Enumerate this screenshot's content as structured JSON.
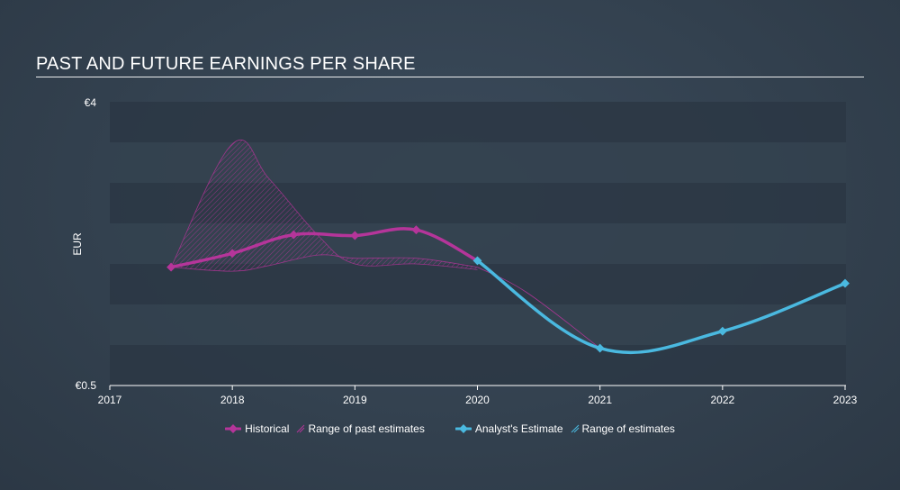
{
  "title": "PAST AND FUTURE EARNINGS PER SHARE",
  "colors": {
    "historical": "#b5359a",
    "estimate": "#4ab9e0",
    "band_dark": "#2b3744",
    "band_light": "#34424f"
  },
  "chart_data": {
    "type": "line",
    "title": "PAST AND FUTURE EARNINGS PER SHARE",
    "ylabel": "EUR",
    "ylim": [
      0.5,
      4
    ],
    "y_tick_labels": [
      "€4",
      "€0.5"
    ],
    "xlim": [
      2017,
      2023.05
    ],
    "x_ticks": [
      "2017",
      "2018",
      "2019",
      "2020",
      "2021",
      "2022",
      "2023"
    ],
    "series": [
      {
        "name": "Historical",
        "x": [
          2017.5,
          2018.0,
          2018.5,
          2019.0,
          2019.5,
          2020.0
        ],
        "values": [
          1.96,
          2.13,
          2.36,
          2.35,
          2.42,
          2.04
        ]
      },
      {
        "name": "Range of past estimates",
        "upper": {
          "x": [
            2017.5,
            2018.0,
            2018.3,
            2018.7,
            2019.0,
            2019.5,
            2020.0
          ],
          "values": [
            1.96,
            3.48,
            3.05,
            2.35,
            2.0,
            2.0,
            1.93
          ]
        },
        "lower": {
          "x": [
            2017.5,
            2018.0,
            2018.3,
            2018.7,
            2019.0,
            2019.5,
            2020.0
          ],
          "values": [
            1.96,
            1.91,
            1.98,
            2.11,
            2.07,
            2.07,
            1.96
          ]
        }
      },
      {
        "name": "Analyst's Estimate",
        "x": [
          2020.0,
          2021.0,
          2022.0,
          2023.0
        ],
        "values": [
          2.04,
          0.96,
          1.17,
          1.76
        ]
      },
      {
        "name": "Range of estimates",
        "x": [
          2020.0,
          2021.0
        ],
        "values": [
          1.96,
          0.96
        ]
      }
    ],
    "grid": true,
    "legend_position": "bottom-center"
  },
  "legend": {
    "historical": "Historical",
    "past_range": "Range of past estimates",
    "estimate": "Analyst's Estimate",
    "future_range": "Range of estimates"
  }
}
